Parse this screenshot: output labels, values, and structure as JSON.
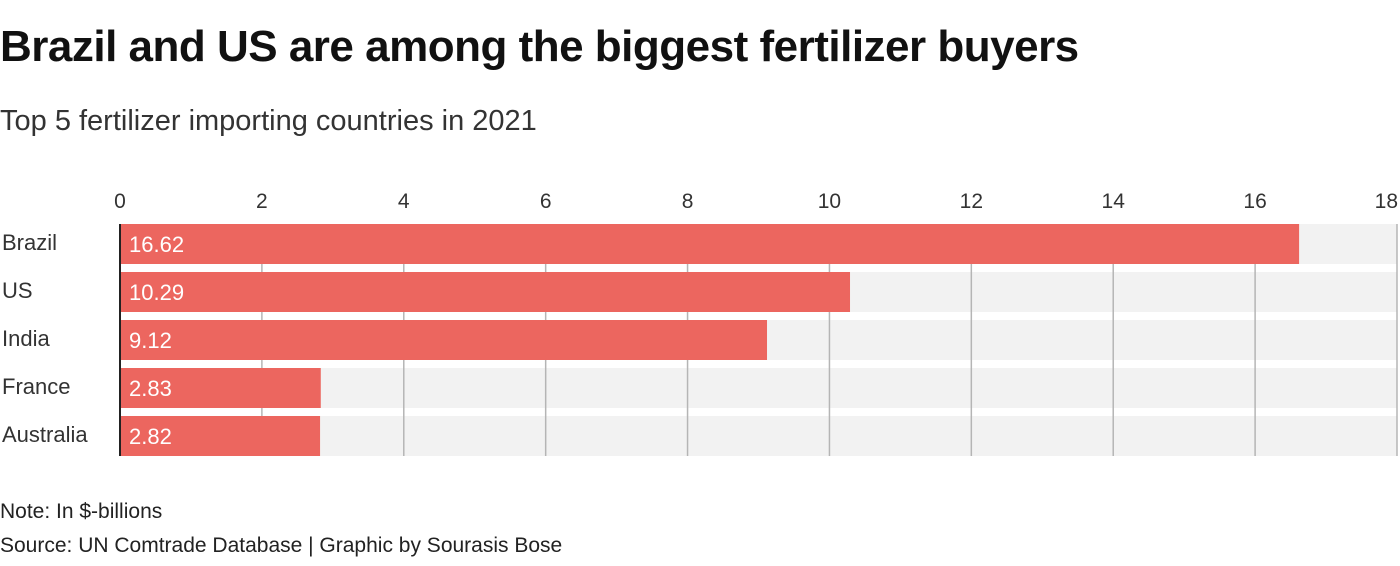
{
  "header": {
    "title": "Brazil and US are among the biggest fertilizer buyers",
    "subtitle": "Top 5 fertilizer importing countries in 2021"
  },
  "footer": {
    "note": "Note: In $-billions",
    "source": "Source: UN Comtrade Database | Graphic by Sourasis Bose"
  },
  "colors": {
    "bar": "#ec665f",
    "track": "#f2f2f2",
    "grid": "#b5b5b5",
    "axis": "#222222",
    "bar_label": "#ffffff",
    "text": "#333333"
  },
  "chart_data": {
    "type": "bar",
    "orientation": "horizontal",
    "title": "Brazil and US are among the biggest fertilizer buyers",
    "subtitle": "Top 5 fertilizer importing countries in 2021",
    "categories": [
      "Brazil",
      "US",
      "India",
      "France",
      "Australia"
    ],
    "values": [
      16.62,
      10.29,
      9.12,
      2.83,
      2.82
    ],
    "data_labels": [
      "16.62",
      "10.29",
      "9.12",
      "2.83",
      "2.82"
    ],
    "xlim": [
      0,
      18
    ],
    "xticks": [
      0,
      2,
      4,
      6,
      8,
      10,
      12,
      14,
      16,
      18
    ],
    "tick_labels": [
      "0",
      "2",
      "4",
      "6",
      "8",
      "10",
      "12",
      "14",
      "16",
      "18"
    ],
    "xlabel": "",
    "ylabel": "",
    "grid": true,
    "axis_position": "top",
    "legend": "none"
  }
}
